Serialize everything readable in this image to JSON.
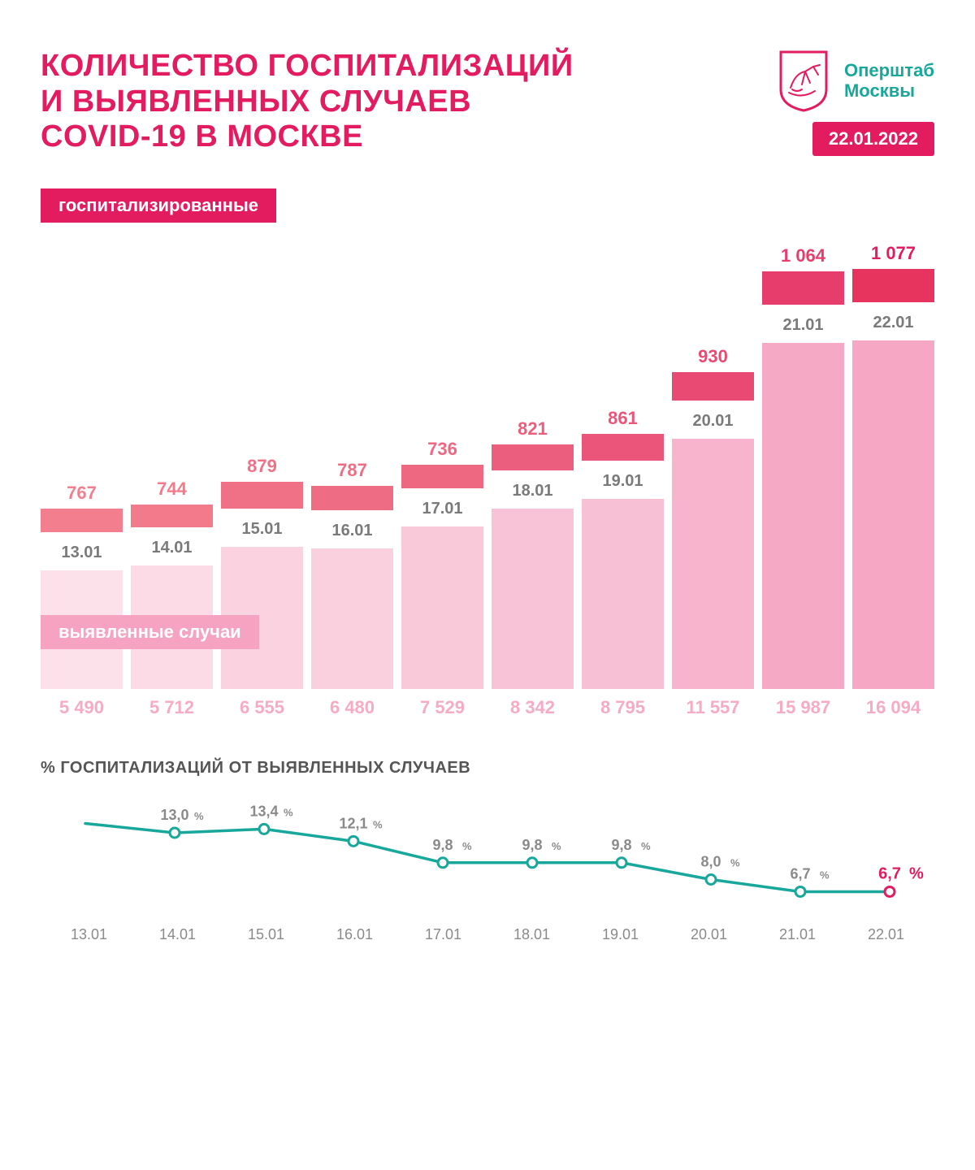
{
  "header": {
    "title_line1": "КОЛИЧЕСТВО ГОСПИТАЛИЗАЦИЙ",
    "title_line2": "И ВЫЯВЛЕННЫХ СЛУЧАЕВ",
    "title_line3": "COVID-19 В МОСКВЕ",
    "org_line1": "Оперштаб",
    "org_line2": "Москвы",
    "date": "22.01.2022",
    "emblem_stroke": "#e31b5f",
    "title_color": "#e31b5f",
    "org_color": "#18a89b",
    "date_bg": "#e31b5f"
  },
  "labels": {
    "hospitalized": "госпитализированные",
    "cases": "выявленные случаи",
    "percent_title": "% ГОСПИТАЛИЗАЦИЙ ОТ ВЫЯВЛЕННЫХ СЛУЧАЕВ"
  },
  "barChart": {
    "dates": [
      "13.01",
      "14.01",
      "15.01",
      "16.01",
      "17.01",
      "18.01",
      "19.01",
      "20.01",
      "21.01",
      "22.01"
    ],
    "hospitalized": {
      "values": [
        767,
        744,
        879,
        787,
        736,
        821,
        861,
        930,
        1064,
        1077
      ],
      "display": [
        "767",
        "744",
        "879",
        "787",
        "736",
        "821",
        "861",
        "930",
        "1 064",
        "1 077"
      ],
      "max_for_scale": 1100,
      "bar_max_h": 42,
      "colors": [
        "#f37f8e",
        "#f37a8a",
        "#f07086",
        "#ef6d84",
        "#ee6882",
        "#ec5e7d",
        "#eb5579",
        "#e94a73",
        "#e73d6c",
        "#e6345f"
      ],
      "text_colors": [
        "#f37f8e",
        "#f37a8a",
        "#f07086",
        "#ef6d84",
        "#ee6882",
        "#ec5e7d",
        "#eb5579",
        "#e94a73",
        "#e73d6c",
        "#e31b5f"
      ]
    },
    "cases": {
      "values": [
        5490,
        5712,
        6555,
        6480,
        7529,
        8342,
        8795,
        11557,
        15987,
        16094
      ],
      "display": [
        "5 490",
        "5 712",
        "6 555",
        "6 480",
        "7 529",
        "8 342",
        "8 795",
        "11 557",
        "15 987",
        "16 094"
      ],
      "max_for_scale": 16500,
      "bar_max_h": 440,
      "colors": [
        "#fce1ea",
        "#fcdbe6",
        "#fad2e0",
        "#fad0df",
        "#f9c9da",
        "#f8c3d6",
        "#f8c0d4",
        "#f7b4cc",
        "#f6a9c4",
        "#f6a7c3"
      ]
    },
    "date_color": "#7a7a7a"
  },
  "lineChart": {
    "dates": [
      "13.01",
      "14.01",
      "15.01",
      "16.01",
      "17.01",
      "18.01",
      "19.01",
      "20.01",
      "21.01",
      "22.01"
    ],
    "values": [
      14.0,
      13.0,
      13.4,
      12.1,
      9.8,
      9.8,
      9.8,
      8.0,
      6.7,
      6.7
    ],
    "display": [
      "",
      "13,0",
      "13,4",
      "12,1",
      "9,8",
      "9,8",
      "9,8",
      "8,0",
      "6,7",
      "6,7"
    ],
    "highlight_last": true,
    "ymin": 5,
    "ymax": 15,
    "stroke": "#18a89b",
    "stroke_width": 3.5,
    "marker_r": 6,
    "marker_fill": "#ffffff",
    "last_marker_stroke": "#e31b5f",
    "label_color": "#8a8a8a",
    "highlight_color": "#e31b5f"
  }
}
